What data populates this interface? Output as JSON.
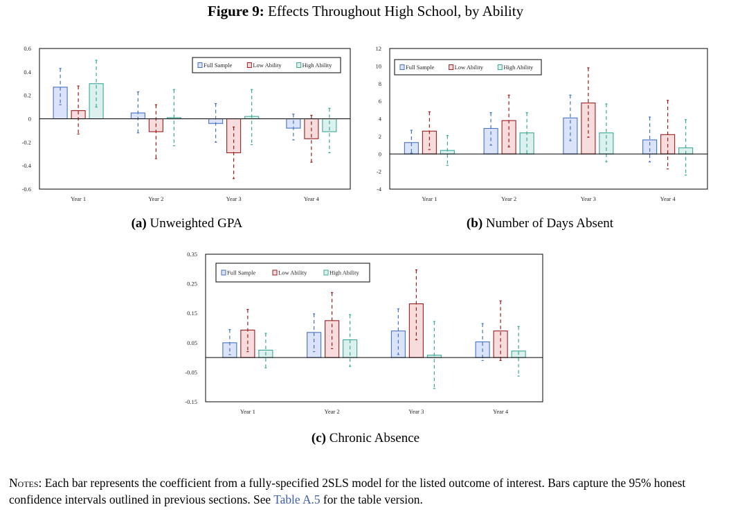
{
  "figure": {
    "label": "Figure 9:",
    "title": "Effects Throughout High School, by Ability"
  },
  "colors": {
    "full_sample_stroke": "#4472c4",
    "full_sample_fill": "#dae3f7",
    "low_ability_stroke": "#9b1c1c",
    "low_ability_fill": "#f6dcdc",
    "high_ability_stroke": "#3aa898",
    "high_ability_fill": "#dcf1ed"
  },
  "chart_data": [
    {
      "type": "bar",
      "panel_label": "(a)",
      "caption": "Unweighted GPA",
      "categories": [
        "Year 1",
        "Year 2",
        "Year 3",
        "Year 4"
      ],
      "ylim": [
        -0.6,
        0.6
      ],
      "yticks": [
        {
          "value": 0.6,
          "label": "0.6"
        },
        {
          "value": 0.4,
          "label": "0.4"
        },
        {
          "value": 0.2,
          "label": "0.2"
        },
        {
          "value": 0,
          "label": "0"
        },
        {
          "value": -0.2,
          "label": "-0.2"
        },
        {
          "value": -0.4,
          "label": "-0.4"
        },
        {
          "value": -0.6,
          "label": "-0.6"
        }
      ],
      "legend_position": "top-right",
      "series": [
        {
          "name": "Full Sample",
          "values": [
            0.27,
            0.05,
            -0.04,
            -0.08
          ],
          "ci_low": [
            0.12,
            -0.12,
            -0.2,
            -0.18
          ],
          "ci_high": [
            0.43,
            0.23,
            0.13,
            0.04
          ]
        },
        {
          "name": "Low Ability",
          "values": [
            0.07,
            -0.11,
            -0.29,
            -0.17
          ],
          "ci_low": [
            -0.13,
            -0.34,
            -0.51,
            -0.37
          ],
          "ci_high": [
            0.28,
            0.12,
            -0.07,
            0.03
          ]
        },
        {
          "name": "High Ability",
          "values": [
            0.3,
            0.01,
            0.02,
            -0.11
          ],
          "ci_low": [
            0.1,
            -0.23,
            -0.22,
            -0.29
          ],
          "ci_high": [
            0.5,
            0.25,
            0.25,
            0.09
          ]
        }
      ]
    },
    {
      "type": "bar",
      "panel_label": "(b)",
      "caption": "Number of Days Absent",
      "categories": [
        "Year 1",
        "Year 2",
        "Year 3",
        "Year 4"
      ],
      "ylim": [
        -4,
        12
      ],
      "yticks": [
        {
          "value": 12,
          "label": "12"
        },
        {
          "value": 10,
          "label": "10"
        },
        {
          "value": 8,
          "label": "8"
        },
        {
          "value": 6,
          "label": "6"
        },
        {
          "value": 4,
          "label": "4"
        },
        {
          "value": 2,
          "label": "2"
        },
        {
          "value": 0,
          "label": "0"
        },
        {
          "value": -2,
          "label": "-2"
        },
        {
          "value": -4,
          "label": "-4"
        }
      ],
      "legend_position": "top-left",
      "series": [
        {
          "name": "Full Sample",
          "values": [
            1.3,
            2.9,
            4.1,
            1.6
          ],
          "ci_low": [
            0.1,
            1.0,
            1.5,
            -0.9
          ],
          "ci_high": [
            2.7,
            4.7,
            6.7,
            4.2
          ]
        },
        {
          "name": "Low Ability",
          "values": [
            2.6,
            3.8,
            5.8,
            2.2
          ],
          "ci_low": [
            0.5,
            0.8,
            1.9,
            -1.7
          ],
          "ci_high": [
            4.8,
            6.7,
            9.8,
            6.1
          ]
        },
        {
          "name": "High Ability",
          "values": [
            0.4,
            2.4,
            2.4,
            0.7
          ],
          "ci_low": [
            -1.3,
            0.0,
            -0.9,
            -2.4
          ],
          "ci_high": [
            2.1,
            4.7,
            5.7,
            3.9
          ]
        }
      ]
    },
    {
      "type": "bar",
      "panel_label": "(c)",
      "caption": "Chronic Absence",
      "categories": [
        "Year 1",
        "Year 2",
        "Year 3",
        "Year 4"
      ],
      "ylim": [
        -0.15,
        0.35
      ],
      "yticks": [
        {
          "value": 0.35,
          "label": "0.35"
        },
        {
          "value": 0.25,
          "label": "0.25"
        },
        {
          "value": 0.15,
          "label": "0.15"
        },
        {
          "value": 0.05,
          "label": "0.05"
        },
        {
          "value": -0.05,
          "label": "-0.05"
        },
        {
          "value": -0.15,
          "label": "-0.15"
        }
      ],
      "legend_position": "top-left",
      "series": [
        {
          "name": "Full Sample",
          "values": [
            0.05,
            0.085,
            0.09,
            0.053
          ],
          "ci_low": [
            0.01,
            0.02,
            0.01,
            -0.01
          ],
          "ci_high": [
            0.095,
            0.148,
            0.165,
            0.115
          ]
        },
        {
          "name": "Low Ability",
          "values": [
            0.093,
            0.125,
            0.182,
            0.09
          ],
          "ci_low": [
            0.02,
            0.03,
            0.06,
            -0.01
          ],
          "ci_high": [
            0.163,
            0.22,
            0.297,
            0.192
          ]
        },
        {
          "name": "High Ability",
          "values": [
            0.025,
            0.06,
            0.008,
            0.022
          ],
          "ci_low": [
            -0.035,
            -0.03,
            -0.105,
            -0.063
          ],
          "ci_high": [
            0.082,
            0.145,
            0.122,
            0.105
          ]
        }
      ]
    }
  ],
  "notes": {
    "lead": "Notes:",
    "body_1": " Each bar represents the coefficient from a fully-specified 2SLS model for the listed outcome of interest. Bars capture the 95% honest confidence intervals outlined in previous sections. See ",
    "ref": "Table A.5",
    "body_2": " for the table version."
  }
}
